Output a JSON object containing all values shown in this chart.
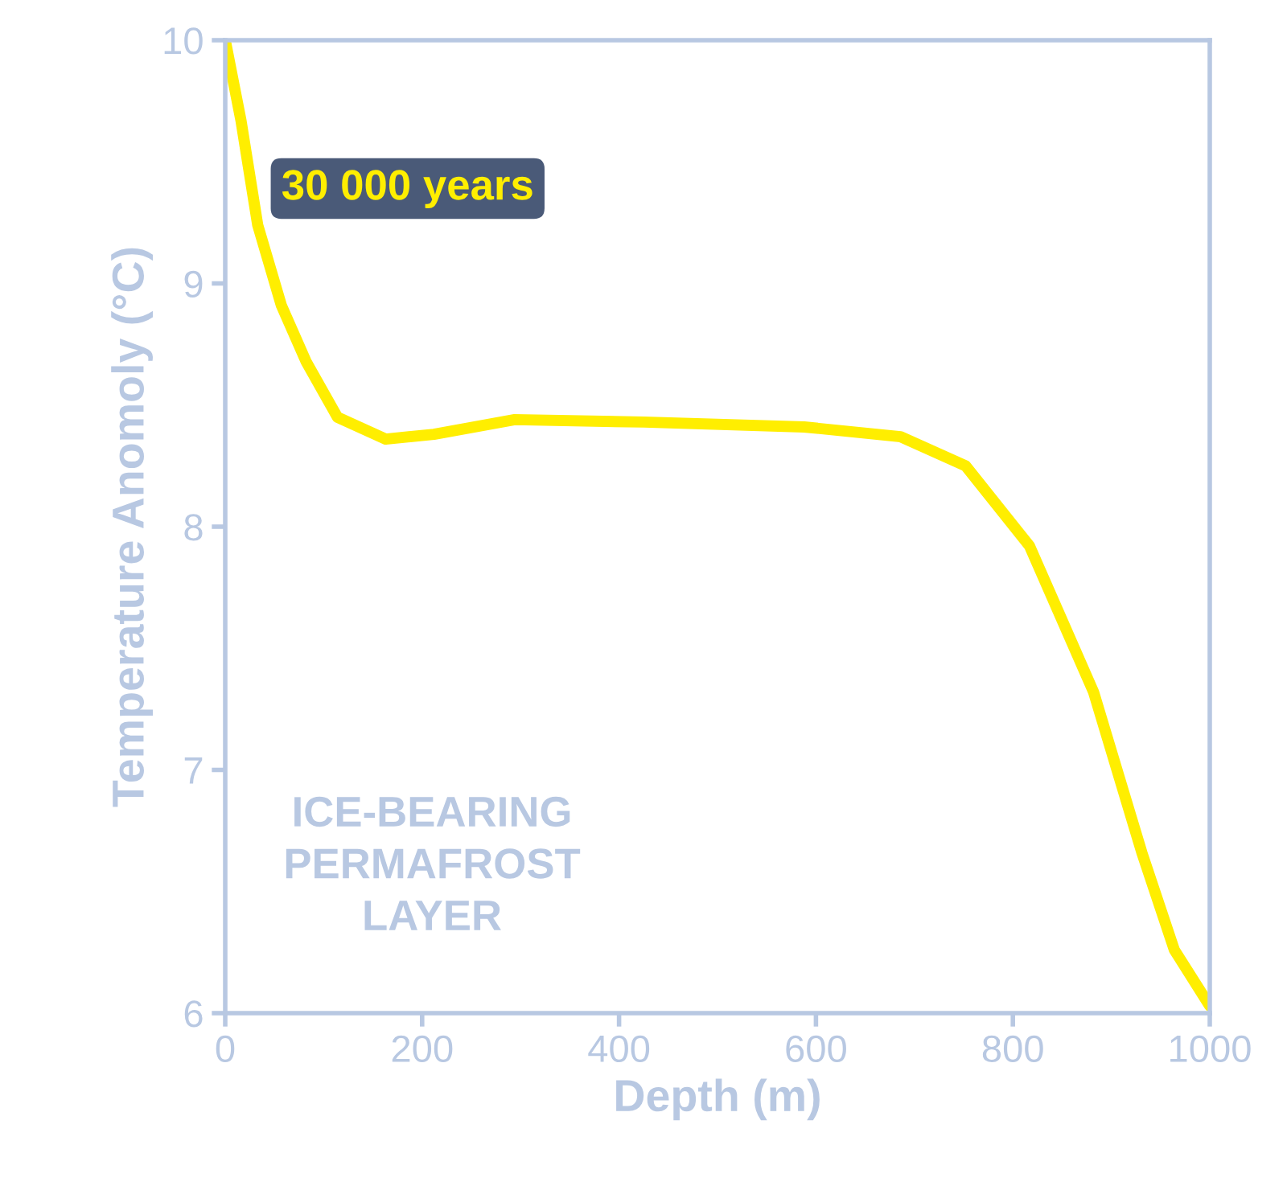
{
  "chart_data": {
    "type": "line",
    "xlabel": "Depth (m)",
    "ylabel": "Temperature Anomoly (°C)",
    "xlim": [
      0,
      1000
    ],
    "xticks": [
      0,
      200,
      400,
      600,
      800,
      1000
    ],
    "ylim": [
      6,
      10
    ],
    "yticks": [
      6,
      7,
      8,
      9,
      10
    ],
    "grid": false,
    "legend": false,
    "marker": "none",
    "line_style": "solid",
    "series": [
      {
        "name": "30 000 years",
        "color": "#ffee00",
        "x": [
          0,
          16,
          33,
          57,
          82,
          114,
          163,
          212,
          294,
          425,
          588,
          686,
          752,
          817,
          882,
          931,
          964,
          1000
        ],
        "values": [
          10.0,
          9.67,
          9.24,
          8.91,
          8.68,
          8.45,
          8.36,
          8.38,
          8.44,
          8.43,
          8.41,
          8.37,
          8.25,
          7.92,
          7.32,
          6.66,
          6.26,
          6.03
        ]
      }
    ],
    "annotations": [
      "ICE-BEARING\nPERMAFROST\nLAYER"
    ]
  }
}
